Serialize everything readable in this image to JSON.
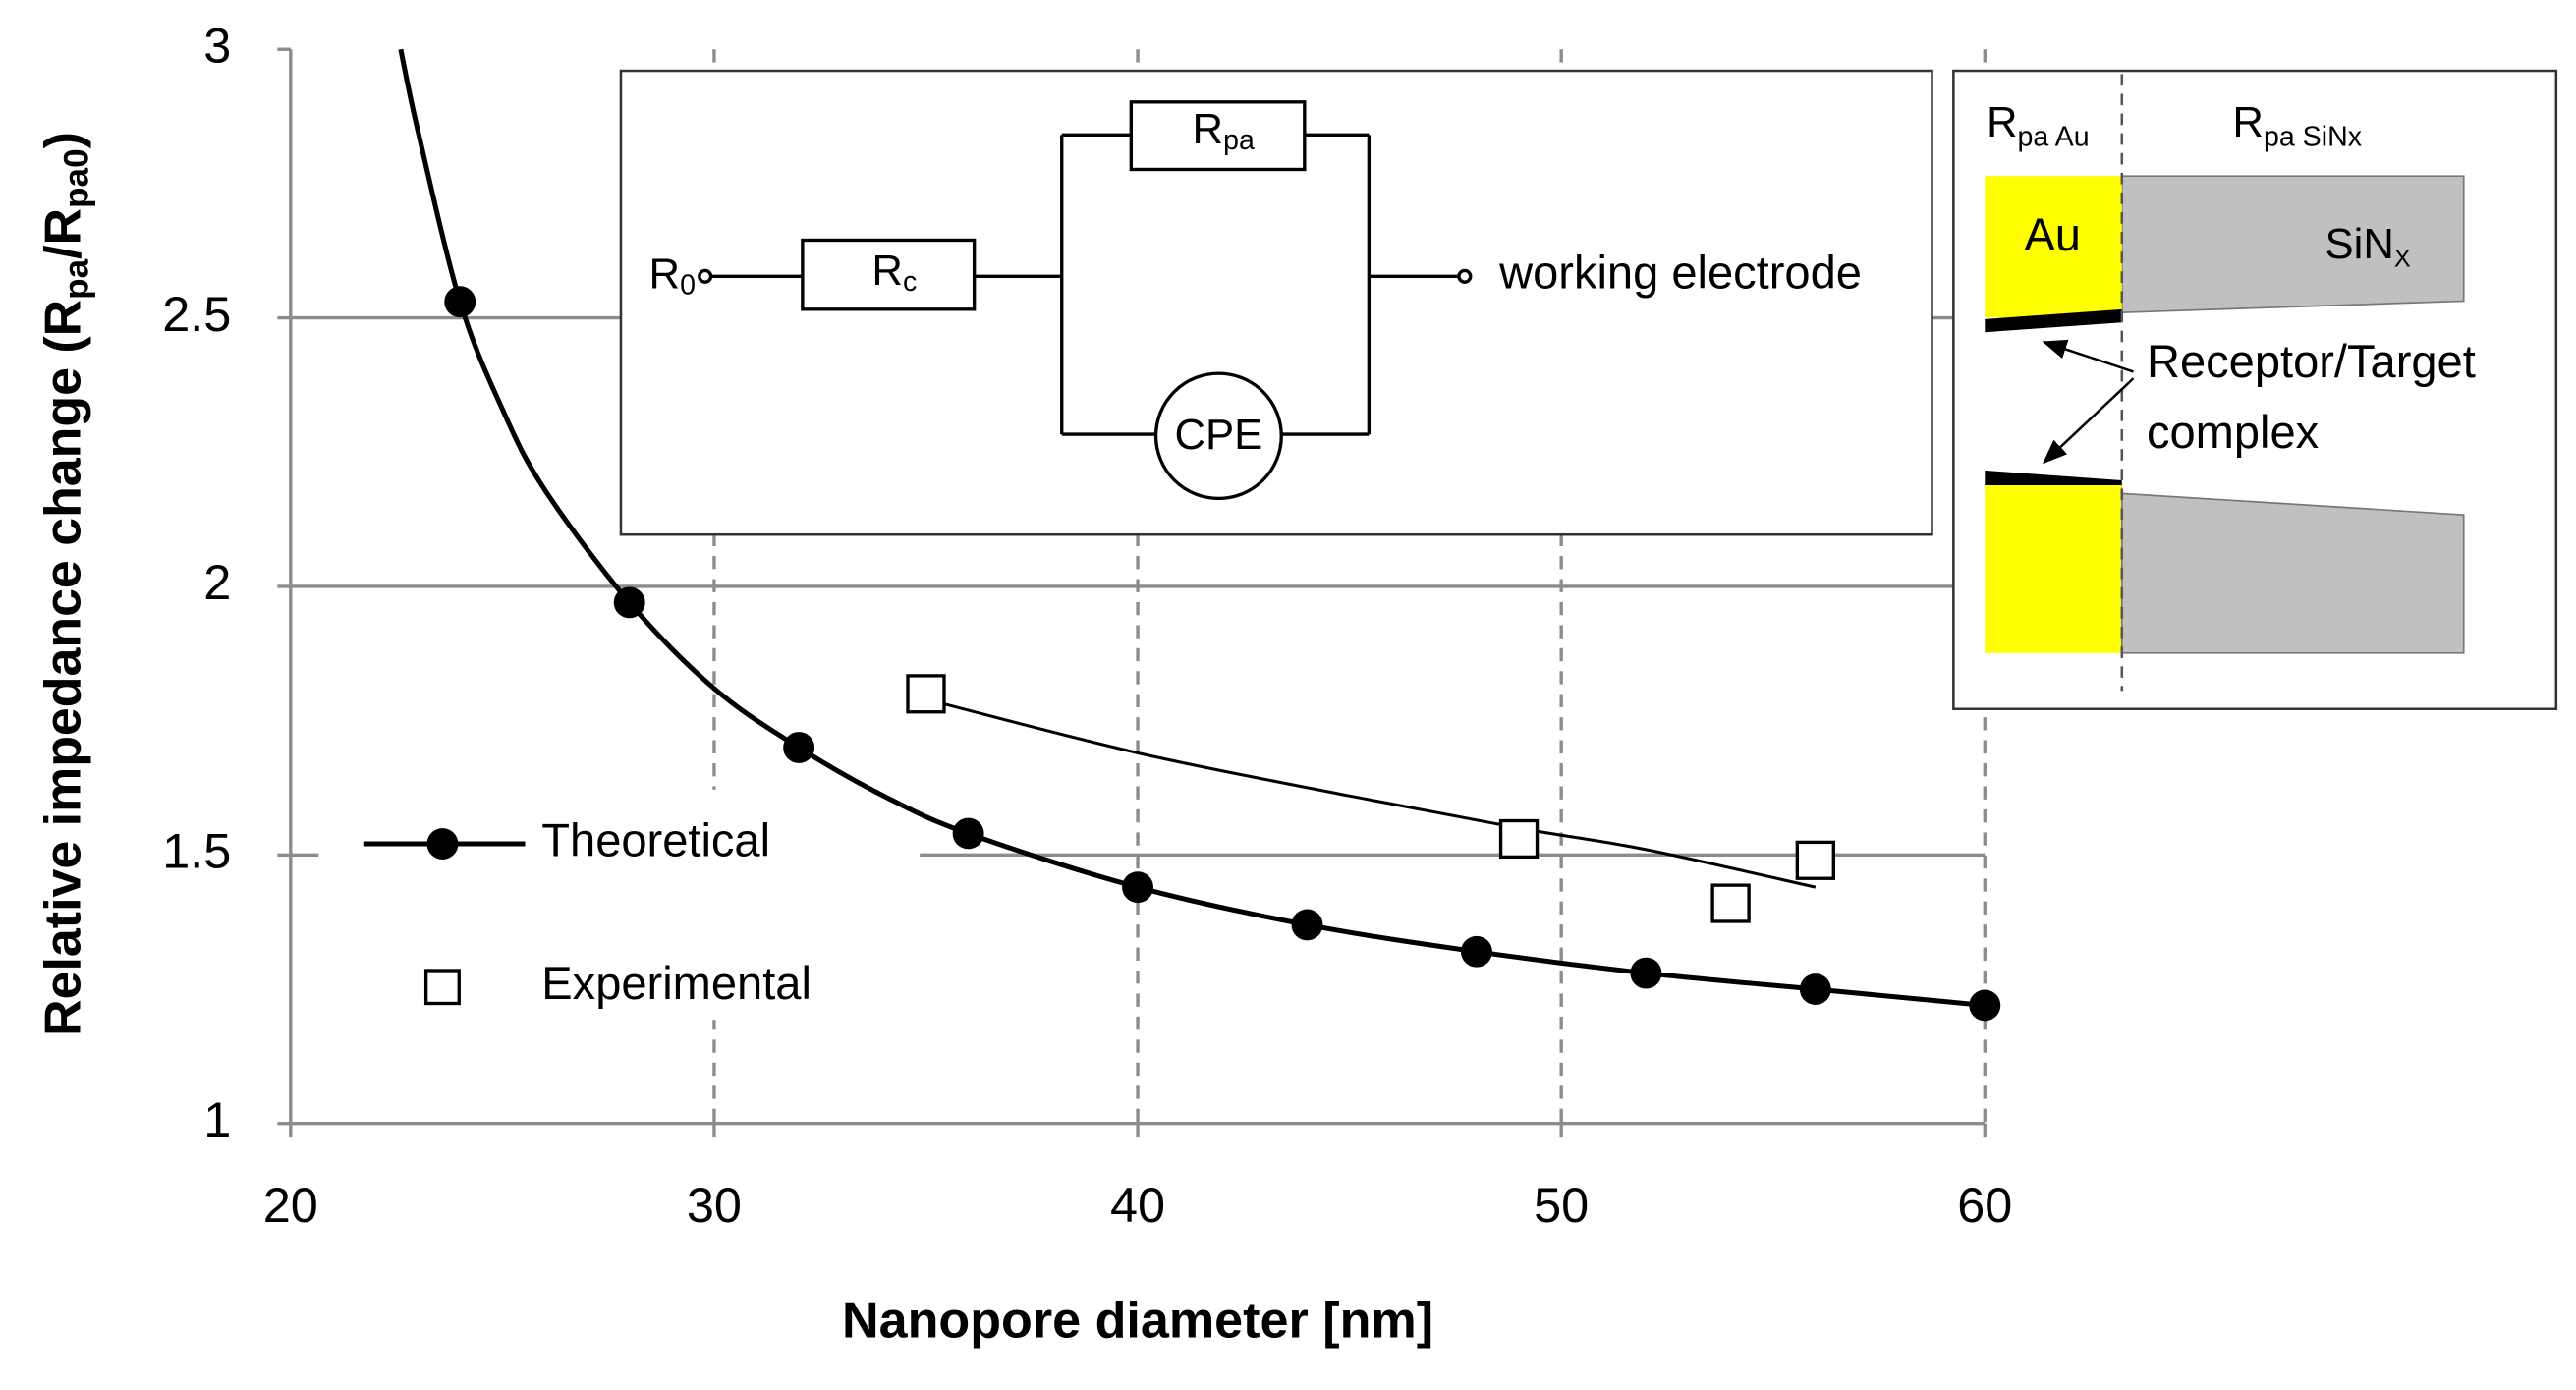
{
  "chart_data": {
    "type": "line",
    "xlabel": "Nanopore diameter [nm]",
    "ylabel_parts": [
      "Relative impedance change (R",
      "pa",
      "/R",
      "pa0",
      ")"
    ],
    "xlim": [
      20,
      60
    ],
    "ylim": [
      1,
      3
    ],
    "xticks": [
      20,
      30,
      40,
      50,
      60
    ],
    "yticks": [
      1,
      1.5,
      2,
      2.5,
      3
    ],
    "grid": true,
    "series": [
      {
        "name": "Theoretical",
        "color": "#000000",
        "marker": "circle",
        "legend_line": true,
        "x": [
          24,
          28,
          32,
          36,
          40,
          44,
          48,
          52,
          56,
          60
        ],
        "values": [
          2.53,
          1.97,
          1.7,
          1.54,
          1.44,
          1.37,
          1.32,
          1.28,
          1.25,
          1.22
        ]
      },
      {
        "name": "Experimental",
        "color": "#000000",
        "marker": "square",
        "legend_line": false,
        "x": [
          35,
          49,
          54,
          56
        ],
        "values": [
          1.8,
          1.53,
          1.41,
          1.49
        ]
      },
      {
        "color": "#000000",
        "line_width": 3,
        "x": [
          22.6,
          23,
          24,
          25,
          26,
          28,
          30,
          32,
          34,
          36,
          40,
          44,
          48,
          52,
          56,
          60
        ],
        "values": [
          3.0,
          2.85,
          2.53,
          2.33,
          2.18,
          1.97,
          1.81,
          1.7,
          1.61,
          1.54,
          1.44,
          1.37,
          1.32,
          1.28,
          1.25,
          1.22
        ]
      },
      {
        "color": "#000000",
        "line_width": 1.8,
        "x": [
          35,
          40,
          45,
          49,
          52,
          56
        ],
        "values": [
          1.79,
          1.69,
          1.61,
          1.55,
          1.51,
          1.44
        ]
      }
    ]
  },
  "circuit": {
    "r0": {
      "text": "R",
      "sub": "0"
    },
    "rc": {
      "text": "R",
      "sub": "c"
    },
    "rpa": {
      "text": "R",
      "sub": "pa"
    },
    "cpe": "CPE",
    "output": "working electrode"
  },
  "cross_section": {
    "left_header": {
      "text": "R",
      "sub": "pa Au"
    },
    "right_header": {
      "text": "R",
      "sub": "pa SiNx"
    },
    "au": "Au",
    "sinx": {
      "text": "SiN",
      "sub": "X"
    },
    "annotation": [
      "Receptor/Target",
      "complex"
    ]
  }
}
